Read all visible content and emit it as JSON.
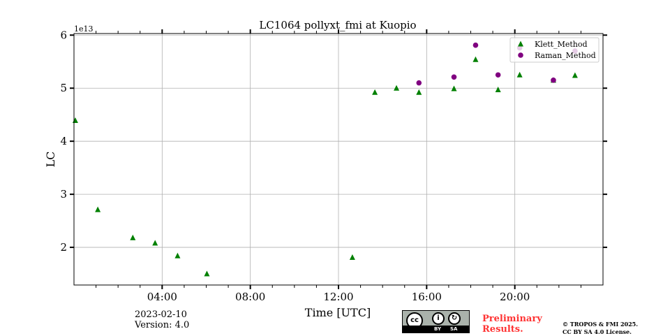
{
  "chart_data": {
    "type": "scatter",
    "title": "LC1064 pollyxt_fmi at Kuopio",
    "xlabel": "Time [UTC]",
    "ylabel": "LC",
    "y_offset_label": "1e13",
    "xlim": [
      0,
      24
    ],
    "ylim": [
      1.29,
      6.03
    ],
    "xticks": [
      4,
      8,
      12,
      16,
      20
    ],
    "xtick_labels": [
      "04:00",
      "08:00",
      "12:00",
      "16:00",
      "20:00"
    ],
    "yticks": [
      2,
      3,
      4,
      5,
      6
    ],
    "ytick_labels": [
      "2",
      "3",
      "4",
      "5",
      "6"
    ],
    "grid": true,
    "legend_placement": "top-right",
    "series": [
      {
        "name": "Klett_Method",
        "color": "#008000",
        "marker": "triangle",
        "x": [
          0.06,
          1.08,
          2.67,
          3.68,
          4.7,
          6.03,
          12.63,
          13.65,
          14.63,
          15.65,
          17.24,
          18.22,
          19.24,
          20.22,
          21.75,
          22.73
        ],
        "y": [
          4.39,
          2.71,
          2.18,
          2.08,
          1.84,
          1.5,
          1.81,
          4.92,
          5.0,
          4.92,
          4.99,
          5.54,
          4.97,
          5.25,
          5.15,
          5.24
        ]
      },
      {
        "name": "Raman_Method",
        "color": "#800080",
        "marker": "circle",
        "x": [
          15.65,
          17.24,
          18.22,
          19.24,
          20.22,
          21.75,
          22.73
        ],
        "y": [
          5.1,
          5.21,
          5.81,
          5.25,
          5.76,
          5.15,
          5.7
        ]
      }
    ]
  },
  "footer": {
    "date": "2023-02-10",
    "version": "Version: 4.0",
    "license_cc": "cc",
    "license_by": "BY",
    "license_sa": "SA",
    "preliminary": "Preliminary\nResults.",
    "copyright": "© TROPOS & FMI 2025.",
    "license_text": "CC BY SA 4.0 License."
  }
}
